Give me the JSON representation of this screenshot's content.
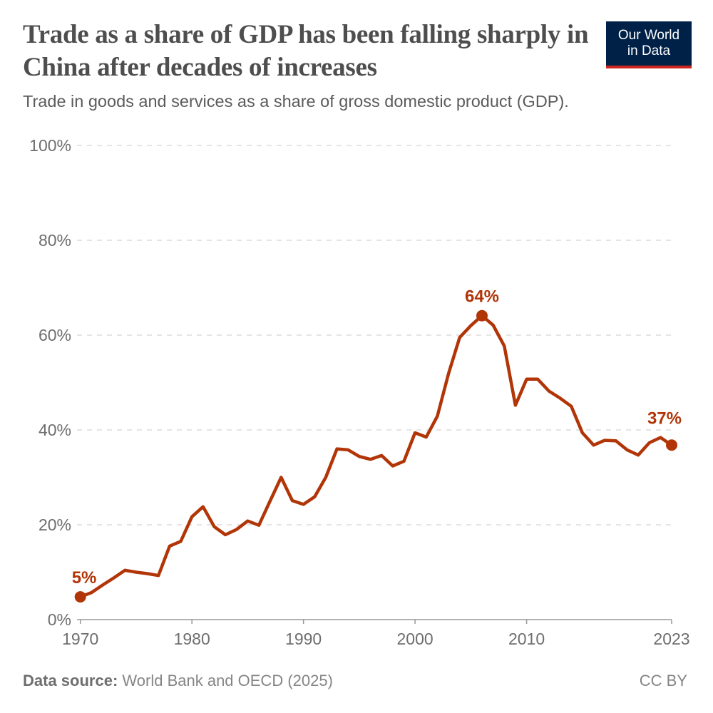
{
  "header": {
    "title": "Trade as a share of GDP has been falling sharply in China after decades of increases",
    "subtitle": "Trade in goods and services as a share of gross domestic product (GDP).",
    "logo_line1": "Our World",
    "logo_line2": "in Data"
  },
  "footer": {
    "source_label": "Data source:",
    "source": "World Bank and OECD (2025)",
    "license": "CC BY"
  },
  "chart_data": {
    "type": "line",
    "title": "Trade as a share of GDP has been falling sharply in China after decades of increases",
    "subtitle": "Trade in goods and services as a share of gross domestic product (GDP).",
    "xlabel": "",
    "ylabel": "",
    "xlim": [
      1970,
      2023
    ],
    "ylim": [
      0,
      100
    ],
    "y_ticks": [
      0,
      20,
      40,
      60,
      80,
      100
    ],
    "y_tick_labels": [
      "0%",
      "20%",
      "40%",
      "60%",
      "80%",
      "100%"
    ],
    "x_ticks": [
      1970,
      1980,
      1990,
      2000,
      2010,
      2023
    ],
    "x_tick_labels": [
      "1970",
      "1980",
      "1990",
      "2000",
      "2010",
      "2023"
    ],
    "grid": "horizontal dashed",
    "color": "#b13507",
    "series": [
      {
        "x": [
          1970,
          1971,
          1972,
          1973,
          1974,
          1975,
          1976,
          1977,
          1978,
          1979,
          1980,
          1981,
          1982,
          1983,
          1984,
          1985,
          1986,
          1987,
          1988,
          1989,
          1990,
          1991,
          1992,
          1993,
          1994,
          1995,
          1996,
          1997,
          1998,
          1999,
          2000,
          2001,
          2002,
          2003,
          2004,
          2005,
          2006,
          2007,
          2008,
          2009,
          2010,
          2011,
          2012,
          2013,
          2014,
          2015,
          2016,
          2017,
          2018,
          2019,
          2020,
          2021,
          2022,
          2023
        ],
        "values": [
          4.8,
          5.7,
          7.3,
          8.8,
          10.4,
          10.0,
          9.7,
          9.3,
          15.5,
          16.5,
          21.7,
          23.8,
          19.6,
          17.9,
          19.0,
          20.8,
          19.9,
          25.0,
          30.0,
          25.1,
          24.3,
          25.9,
          30.0,
          36.0,
          35.8,
          34.4,
          33.8,
          34.6,
          32.4,
          33.4,
          39.4,
          38.5,
          42.9,
          51.9,
          59.5,
          62.0,
          64.1,
          62.1,
          57.7,
          45.2,
          50.7,
          50.7,
          48.2,
          46.7,
          45.0,
          39.4,
          36.8,
          37.8,
          37.7,
          35.8,
          34.7,
          37.3,
          38.4,
          36.8
        ]
      }
    ],
    "annotations": [
      {
        "x": 1970,
        "label": "5%"
      },
      {
        "x": 2006,
        "label": "64%"
      },
      {
        "x": 2023,
        "label": "37%"
      }
    ]
  }
}
